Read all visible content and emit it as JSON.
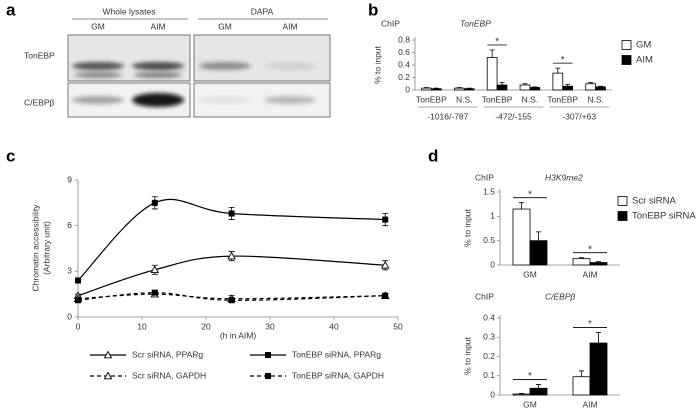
{
  "chart_data": [
    {
      "type": "blot",
      "panel": "a",
      "headers": [
        "Whole lysates",
        "DAPA"
      ],
      "lanes": [
        "GM",
        "AIM",
        "GM",
        "AIM"
      ],
      "rows": [
        "TonEBP",
        "C/EBPβ"
      ]
    },
    {
      "type": "bar",
      "panel": "b",
      "label": "ChIP",
      "target": "TonEBP",
      "ylabel": "% to input",
      "categories": [
        "TonEBP",
        "N.S.",
        "TonEBP",
        "N.S.",
        "TonEBP",
        "N.S."
      ],
      "group_labels": [
        "-1016/-787",
        "-472/-155",
        "-307/+63"
      ],
      "series": [
        {
          "name": "GM",
          "color": "#ffffff",
          "values": [
            0.03,
            0.03,
            0.52,
            0.08,
            0.27,
            0.1
          ],
          "errors": [
            0.01,
            0.01,
            0.12,
            0.02,
            0.08,
            0.02
          ]
        },
        {
          "name": "AIM",
          "color": "#000000",
          "values": [
            0.02,
            0.02,
            0.08,
            0.04,
            0.06,
            0.05
          ],
          "errors": [
            0.01,
            0.01,
            0.04,
            0.01,
            0.03,
            0.01
          ]
        }
      ],
      "annotations": [
        {
          "text": "*",
          "category": 2
        },
        {
          "text": "*",
          "category": 4
        }
      ],
      "ylim": [
        0,
        0.8
      ],
      "yticks": [
        0,
        0.2,
        0.4,
        0.6,
        0.8
      ],
      "legend": "right"
    },
    {
      "type": "line",
      "panel": "c",
      "ylabel": [
        "Chromatin accessibility",
        "(Arbitrary unit)"
      ],
      "xlabel": "(h in AIM)",
      "x": [
        0,
        12,
        24,
        48
      ],
      "series": [
        {
          "name": "Scr siRNA, PPARg",
          "color": "#000000",
          "marker": "triangle",
          "dashed": false,
          "values": [
            1.4,
            3.1,
            4.0,
            3.4
          ],
          "errors": [
            0.1,
            0.3,
            0.3,
            0.3
          ]
        },
        {
          "name": "TonEBP siRNA, PPARg",
          "color": "#000000",
          "marker": "square",
          "dashed": false,
          "values": [
            2.4,
            7.5,
            6.8,
            6.4
          ],
          "errors": [
            0.1,
            0.4,
            0.4,
            0.4
          ]
        },
        {
          "name": "Scr siRNA, GAPDH",
          "color": "#000000",
          "marker": "triangle",
          "dashed": true,
          "values": [
            1.2,
            1.5,
            1.2,
            1.4
          ],
          "errors": [
            0.1,
            0.15,
            0.2,
            0.15
          ]
        },
        {
          "name": "TonEBP siRNA, GAPDH",
          "color": "#000000",
          "marker": "square",
          "dashed": true,
          "values": [
            1.1,
            1.6,
            1.1,
            1.4
          ],
          "errors": [
            0.1,
            0.15,
            0.15,
            0.1
          ]
        }
      ],
      "xlim": [
        0,
        50
      ],
      "xticks": [
        0,
        10,
        20,
        30,
        40,
        50
      ],
      "ylim": [
        0,
        9
      ],
      "yticks": [
        0,
        3,
        6,
        9
      ],
      "legend": "below"
    },
    {
      "type": "bar",
      "panel": "d",
      "label": "ChIP",
      "target": "H3K9me2",
      "ylabel": "% to input",
      "categories": [
        "GM",
        "AIM"
      ],
      "series": [
        {
          "name": "Scr siRNA",
          "color": "#ffffff",
          "values": [
            1.15,
            0.13
          ],
          "errors": [
            0.13,
            0.02
          ]
        },
        {
          "name": "TonEBP siRNA",
          "color": "#000000",
          "values": [
            0.5,
            0.05
          ],
          "errors": [
            0.18,
            0.02
          ]
        }
      ],
      "annotations": [
        {
          "text": "*",
          "category": 0
        },
        {
          "text": "*",
          "category": 1
        }
      ],
      "ylim": [
        0,
        1.5
      ],
      "yticks": [
        0,
        0.5,
        1,
        1.5
      ],
      "legend": "right"
    },
    {
      "type": "bar",
      "label": "ChIP",
      "target": "C/EBPβ",
      "ylabel": "% to input",
      "categories": [
        "GM",
        "AIM"
      ],
      "series": [
        {
          "color": "#ffffff",
          "values": [
            0.005,
            0.095
          ],
          "errors": [
            0.003,
            0.03
          ]
        },
        {
          "color": "#000000",
          "values": [
            0.035,
            0.27
          ],
          "errors": [
            0.02,
            0.055
          ]
        }
      ],
      "annotations": [
        {
          "text": "*",
          "category": 0
        },
        {
          "text": "*",
          "category": 1
        }
      ],
      "ylim": [
        0,
        0.4
      ],
      "yticks": [
        0,
        0.1,
        0.2,
        0.3,
        0.4
      ]
    }
  ]
}
